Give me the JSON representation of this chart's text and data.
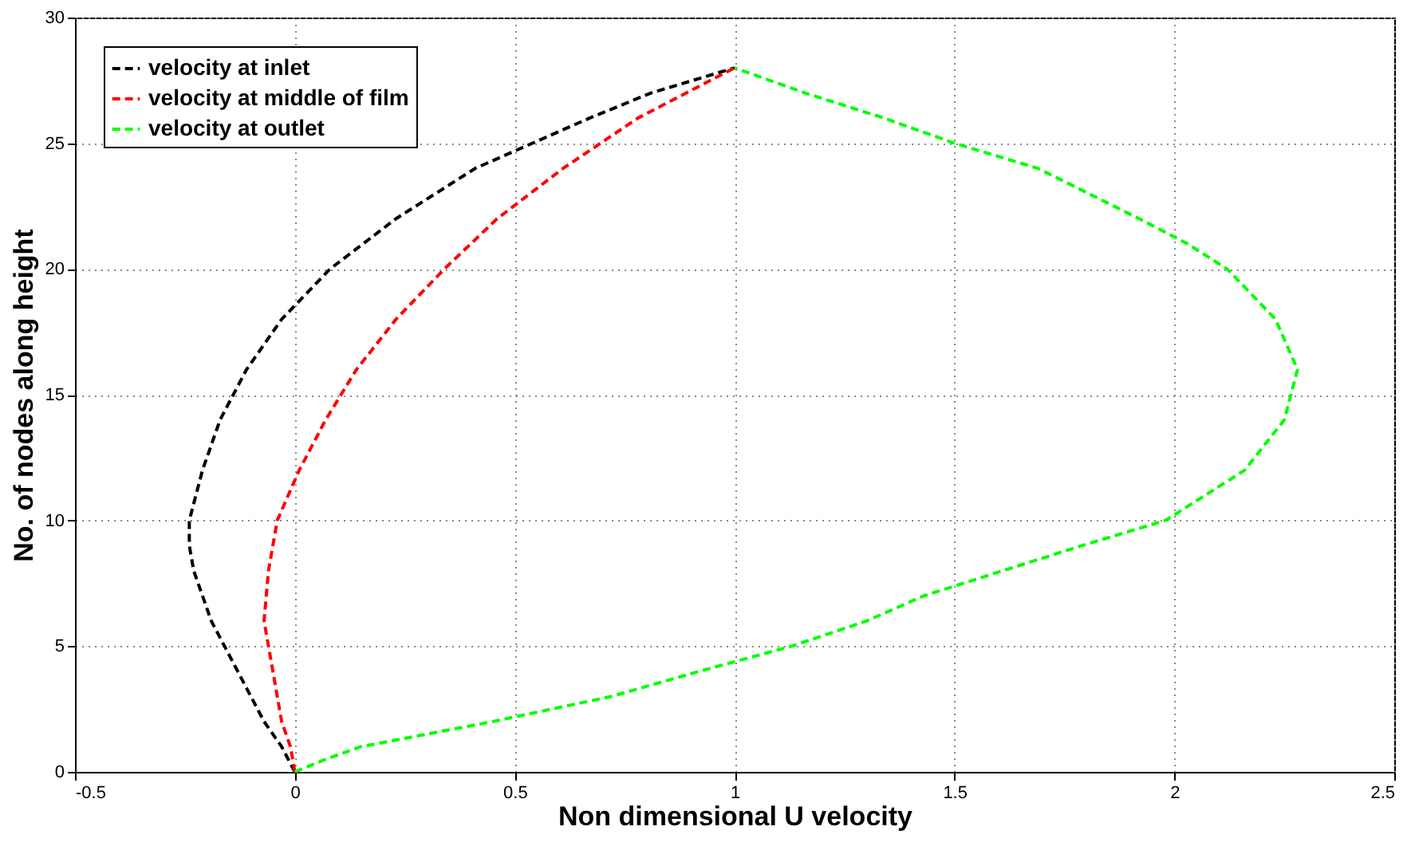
{
  "chart_data": {
    "type": "line",
    "xlabel": "Non dimensional U velocity",
    "ylabel": "No. of nodes along height",
    "xlim": [
      -0.5,
      2.5
    ],
    "xticks": [
      -0.5,
      0,
      0.5,
      1,
      1.5,
      2,
      2.5
    ],
    "ylim": [
      0,
      30
    ],
    "yticks": [
      0,
      5,
      10,
      15,
      20,
      25,
      30
    ],
    "grid": true,
    "legend": "top left",
    "line_style": "dashed",
    "marker": "none",
    "series": [
      {
        "name": "velocity at inlet",
        "color": "#000000",
        "x": [
          0,
          -0.03,
          -0.07,
          -0.13,
          -0.19,
          -0.23,
          -0.24,
          -0.24,
          -0.21,
          -0.17,
          -0.11,
          -0.03,
          0.08,
          0.23,
          0.41,
          0.67,
          0.81,
          1.0
        ],
        "values": [
          0,
          1,
          2,
          4,
          6,
          8,
          9,
          10,
          12,
          14,
          16,
          18,
          20,
          22,
          24,
          26,
          27,
          28
        ]
      },
      {
        "name": "velocity at middle of film",
        "color": "#ff0000",
        "x": [
          0,
          -0.01,
          -0.03,
          -0.05,
          -0.07,
          -0.06,
          -0.04,
          0.01,
          0.07,
          0.14,
          0.23,
          0.34,
          0.46,
          0.61,
          0.78,
          0.89,
          1.0
        ],
        "values": [
          0,
          1,
          2,
          4,
          6,
          8,
          10,
          12,
          14,
          16,
          18,
          20,
          22,
          24,
          26,
          27,
          28
        ]
      },
      {
        "name": "velocity at outlet",
        "color": "#00ff00",
        "x": [
          0,
          0.07,
          0.15,
          0.3,
          0.45,
          0.72,
          0.92,
          1.13,
          1.3,
          1.43,
          1.61,
          1.79,
          1.98,
          2.16,
          2.25,
          2.28,
          2.23,
          2.12,
          2.03,
          1.92,
          1.69,
          1.5,
          1.34,
          1.16,
          1.0
        ],
        "values": [
          0,
          0.5,
          1,
          1.5,
          2,
          3,
          4,
          5,
          6,
          7,
          8,
          9,
          10,
          12,
          14,
          16,
          18,
          20,
          21,
          22,
          24,
          25,
          26,
          27,
          28
        ]
      }
    ]
  }
}
